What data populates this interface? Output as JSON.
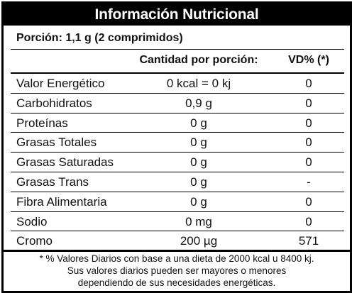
{
  "title": "Información Nutricional",
  "serving": "Porción: 1,1 g (2 comprimidos)",
  "header": {
    "quantity": "Cantidad por porción:",
    "dv": "VD% (*)"
  },
  "rows": [
    {
      "name": "Valor Energético",
      "quantity": "0 kcal = 0 kj",
      "dv": "0"
    },
    {
      "name": "Carbohidratos",
      "quantity": "0,9 g",
      "dv": "0"
    },
    {
      "name": "Proteínas",
      "quantity": "0 g",
      "dv": "0"
    },
    {
      "name": "Grasas Totales",
      "quantity": "0 g",
      "dv": "0"
    },
    {
      "name": "Grasas Saturadas",
      "quantity": "0 g",
      "dv": "0"
    },
    {
      "name": "Grasas Trans",
      "quantity": "0 g",
      "dv": "-"
    },
    {
      "name": "Fibra Alimentaria",
      "quantity": "0 g",
      "dv": "0"
    },
    {
      "name": "Sodio",
      "quantity": "0 mg",
      "dv": "0"
    },
    {
      "name": "Cromo",
      "quantity": "200 µg",
      "dv": "571"
    }
  ],
  "footnote": {
    "line1": "* % Valores Diarios con base a una dieta de 2000 kcal u 8400 kj.",
    "line2": "Sus valores diarios pueden ser mayores o menores",
    "line3": "dependiendo de sus necesidades energéticas."
  }
}
